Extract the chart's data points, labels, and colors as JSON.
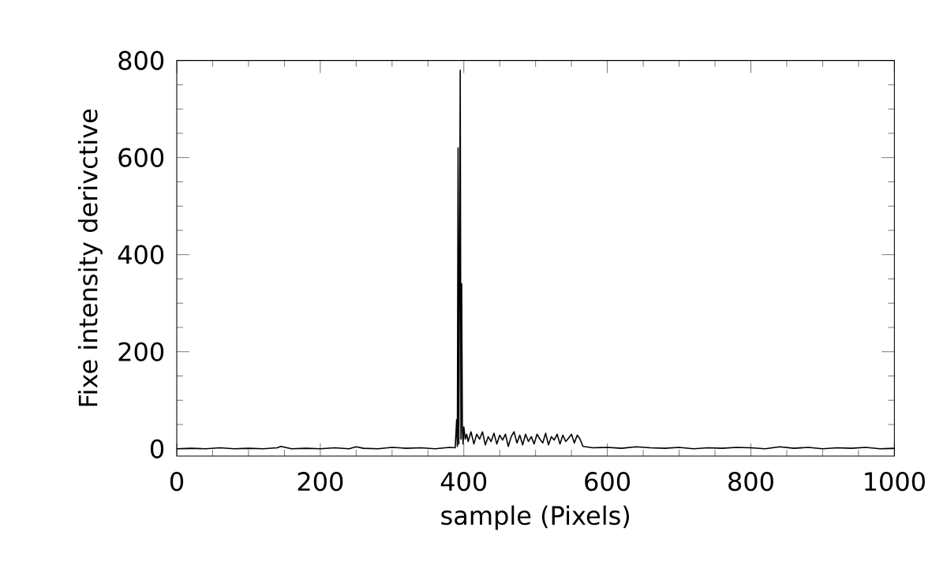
{
  "chart_data": {
    "type": "line",
    "xlabel": "sample (Pixels)",
    "ylabel": "Fixe  intensity derivctive",
    "xlim": [
      0,
      1000
    ],
    "ylim": [
      -15,
      800
    ],
    "xticks": [
      0,
      200,
      400,
      600,
      800,
      1000
    ],
    "yticks": [
      0,
      200,
      400,
      600,
      800
    ],
    "grid": false,
    "marker": "none",
    "line_style": "solid",
    "series": [
      {
        "color": "#000000",
        "x": [
          0,
          20,
          40,
          60,
          80,
          100,
          120,
          140,
          145,
          160,
          180,
          200,
          220,
          240,
          250,
          260,
          280,
          300,
          320,
          340,
          360,
          380,
          388,
          390,
          391,
          392,
          393,
          394,
          395,
          396,
          397,
          398,
          399,
          400,
          402,
          404,
          406,
          410,
          414,
          418,
          422,
          426,
          430,
          434,
          438,
          442,
          446,
          450,
          454,
          458,
          462,
          466,
          470,
          474,
          478,
          482,
          486,
          490,
          494,
          498,
          502,
          506,
          510,
          514,
          518,
          522,
          526,
          530,
          534,
          538,
          542,
          546,
          550,
          554,
          558,
          562,
          566,
          580,
          600,
          620,
          640,
          660,
          680,
          700,
          720,
          740,
          760,
          780,
          800,
          820,
          840,
          860,
          880,
          900,
          920,
          940,
          960,
          980,
          1000
        ],
        "values": [
          0,
          1,
          0,
          2,
          0,
          1,
          0,
          2,
          5,
          0,
          1,
          0,
          2,
          0,
          4,
          1,
          0,
          3,
          1,
          2,
          0,
          3,
          2,
          60,
          5,
          620,
          10,
          350,
          780,
          20,
          340,
          40,
          10,
          45,
          20,
          30,
          15,
          35,
          10,
          30,
          20,
          35,
          8,
          25,
          15,
          32,
          10,
          28,
          18,
          30,
          5,
          25,
          35,
          12,
          28,
          8,
          30,
          15,
          25,
          10,
          30,
          20,
          12,
          32,
          8,
          25,
          18,
          30,
          10,
          28,
          15,
          22,
          30,
          12,
          28,
          20,
          5,
          2,
          3,
          1,
          4,
          2,
          1,
          3,
          0,
          2,
          1,
          3,
          2,
          0,
          4,
          1,
          3,
          0,
          2,
          1,
          3,
          0,
          1
        ]
      }
    ]
  }
}
